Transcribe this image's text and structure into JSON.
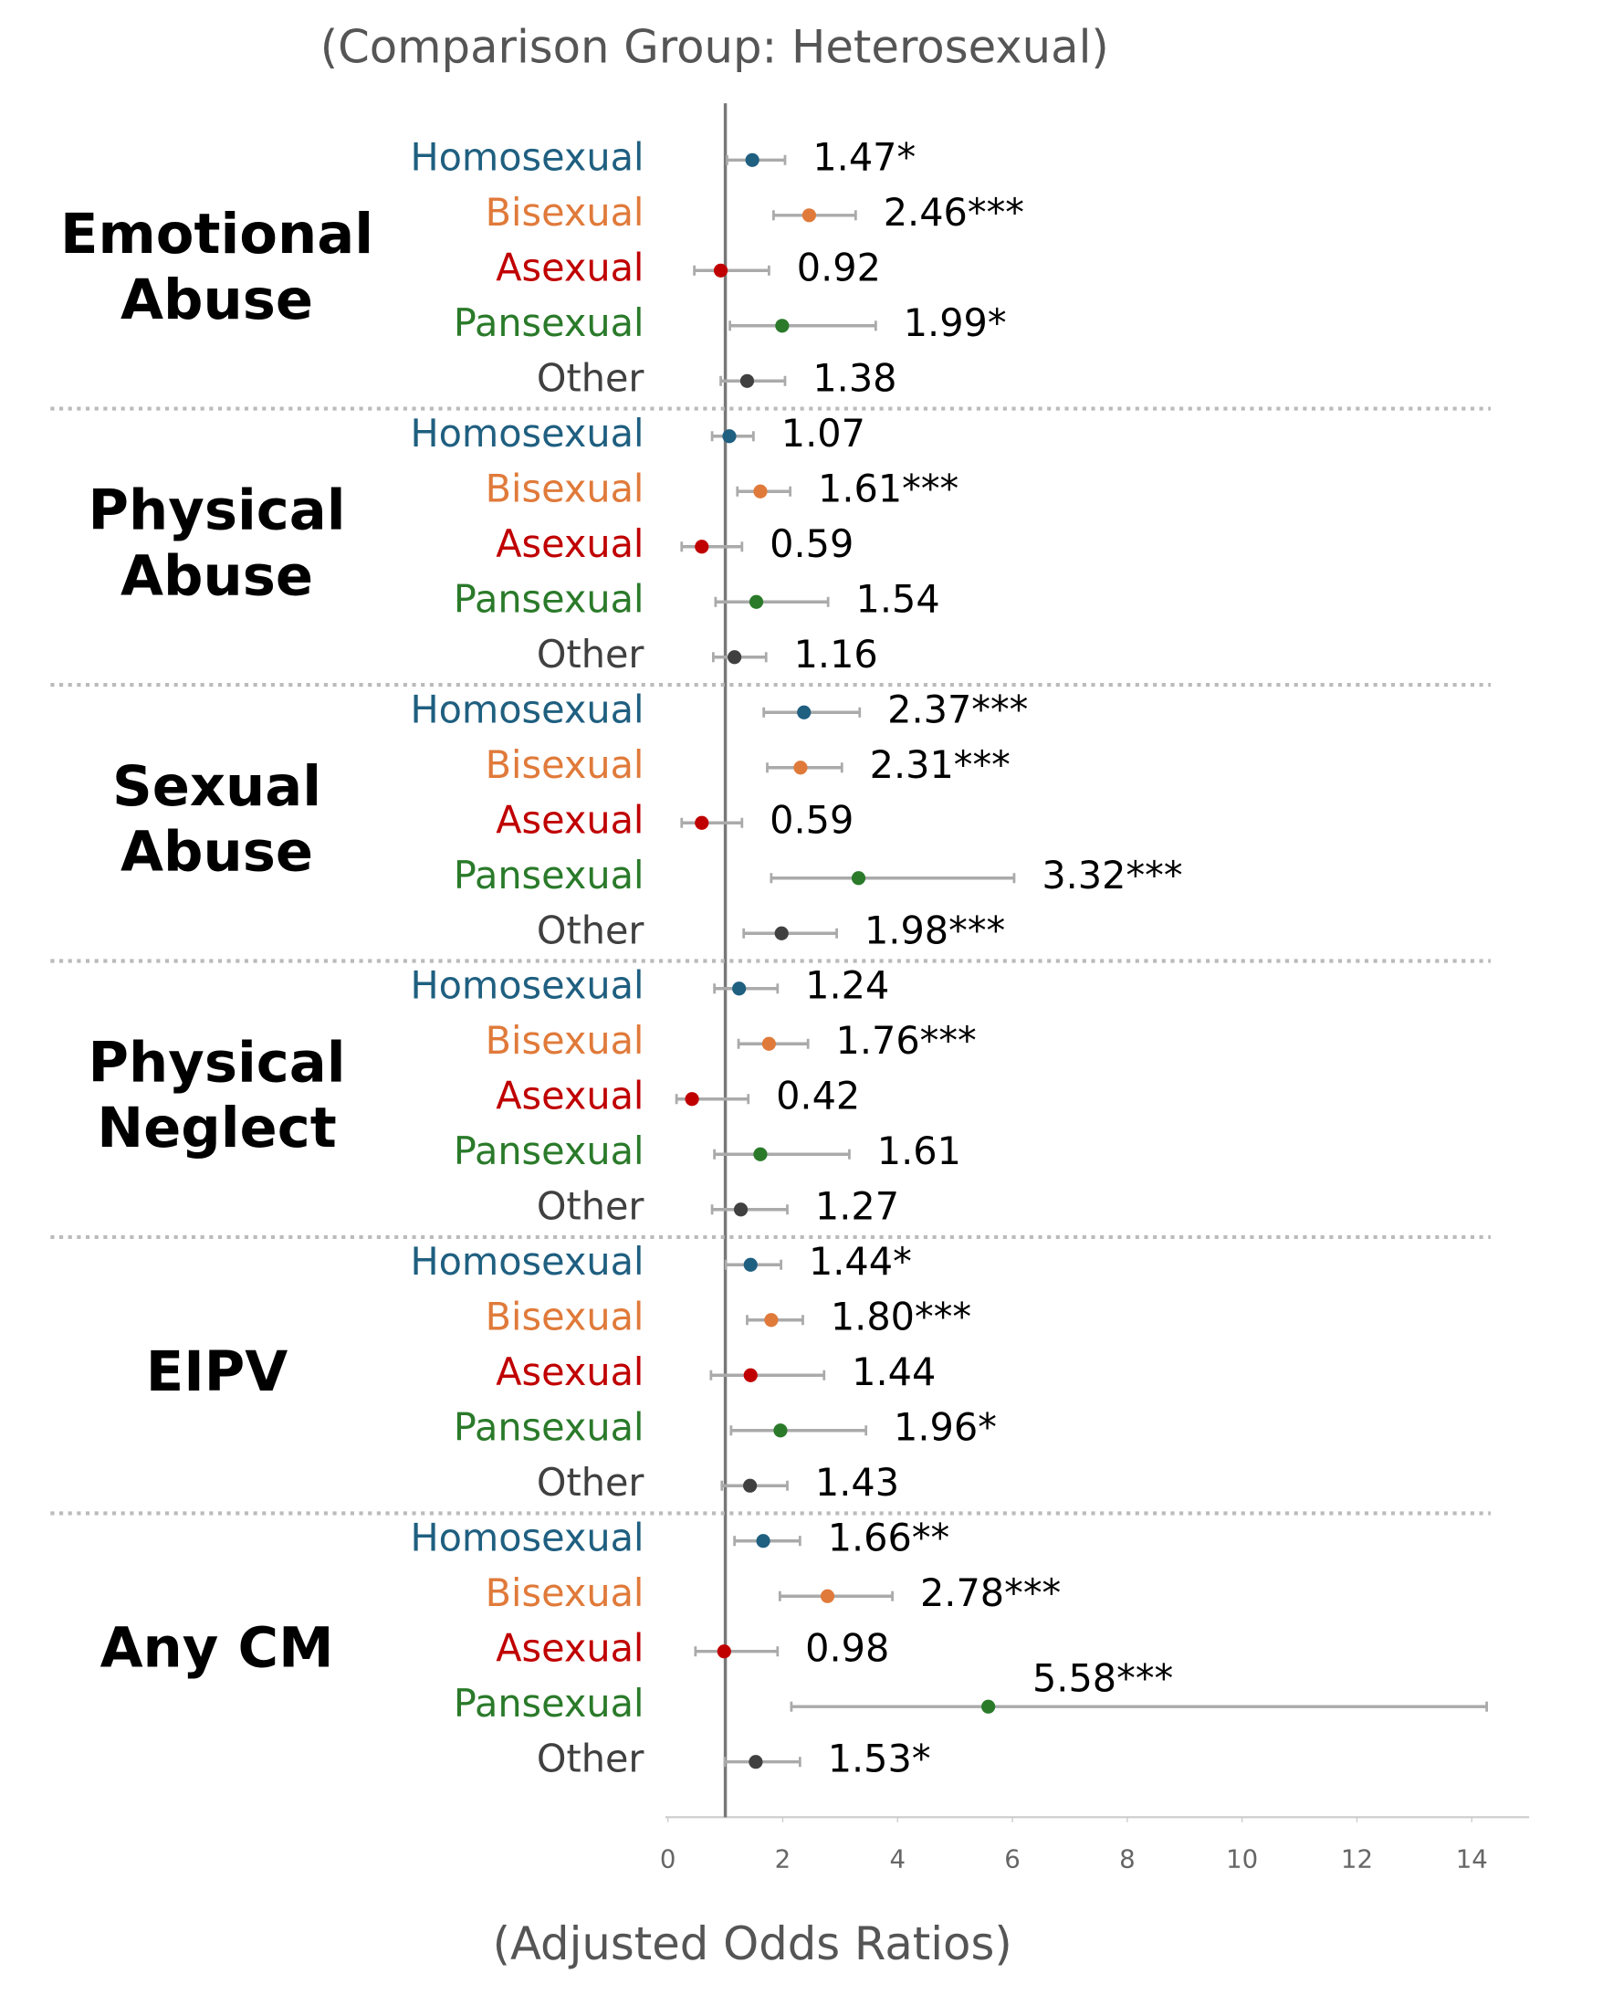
{
  "chart_data": {
    "type": "forest",
    "title": "(Comparison Group: Heterosexual)",
    "xlabel": "(Adjusted Odds Ratios)",
    "categories": [
      "Homosexual",
      "Bisexual",
      "Asexual",
      "Pansexual",
      "Other"
    ],
    "colors": [
      "#1f5f80",
      "#e07a3a",
      "#c00000",
      "#2a7a2a",
      "#404040"
    ],
    "reference_line": 1,
    "xlim": [
      0,
      15
    ],
    "xticks": [
      0,
      2,
      4,
      6,
      8,
      10,
      12,
      14
    ],
    "groups": [
      {
        "name": [
          "Emotional",
          "Abuse"
        ],
        "values": [
          1.47,
          2.46,
          0.92,
          1.99,
          1.38
        ],
        "lower": [
          1.03,
          1.84,
          0.46,
          1.08,
          0.92
        ],
        "upper": [
          2.04,
          3.27,
          1.76,
          3.62,
          2.04
        ],
        "value_labels": [
          "1.47*",
          "2.46***",
          "0.92",
          "1.99*",
          "1.38"
        ]
      },
      {
        "name": [
          "Physical",
          "Abuse"
        ],
        "values": [
          1.07,
          1.61,
          0.59,
          1.54,
          1.16
        ],
        "lower": [
          0.77,
          1.21,
          0.24,
          0.83,
          0.79
        ],
        "upper": [
          1.49,
          2.13,
          1.29,
          2.79,
          1.71
        ],
        "value_labels": [
          "1.07",
          "1.61***",
          "0.59",
          "1.54",
          "1.16"
        ]
      },
      {
        "name": [
          "Sexual",
          "Abuse"
        ],
        "values": [
          2.37,
          2.31,
          0.59,
          3.32,
          1.98
        ],
        "lower": [
          1.67,
          1.73,
          0.24,
          1.8,
          1.32
        ],
        "upper": [
          3.34,
          3.03,
          1.29,
          6.03,
          2.94
        ],
        "value_labels": [
          "2.37***",
          "2.31***",
          "0.59",
          "3.32***",
          "1.98***"
        ]
      },
      {
        "name": [
          "Physical",
          "Neglect"
        ],
        "values": [
          1.24,
          1.76,
          0.42,
          1.61,
          1.27
        ],
        "lower": [
          0.81,
          1.23,
          0.15,
          0.81,
          0.77
        ],
        "upper": [
          1.91,
          2.44,
          1.4,
          3.16,
          2.08
        ],
        "value_labels": [
          "1.24",
          "1.76***",
          "0.42",
          "1.61",
          "1.27"
        ]
      },
      {
        "name": [
          "EIPV"
        ],
        "values": [
          1.44,
          1.8,
          1.44,
          1.96,
          1.43
        ],
        "lower": [
          1.01,
          1.38,
          0.75,
          1.1,
          0.94
        ],
        "upper": [
          1.97,
          2.35,
          2.72,
          3.45,
          2.08
        ],
        "value_labels": [
          "1.44*",
          "1.80***",
          "1.44",
          "1.96*",
          "1.43"
        ]
      },
      {
        "name": [
          "Any CM"
        ],
        "values": [
          1.66,
          2.78,
          0.98,
          5.58,
          1.53
        ],
        "lower": [
          1.16,
          1.95,
          0.48,
          2.15,
          0.99
        ],
        "upper": [
          2.3,
          3.91,
          1.91,
          14.26,
          2.3
        ],
        "value_labels": [
          "1.66**",
          "2.78***",
          "0.98",
          "5.58***",
          "1.53*"
        ]
      }
    ]
  }
}
